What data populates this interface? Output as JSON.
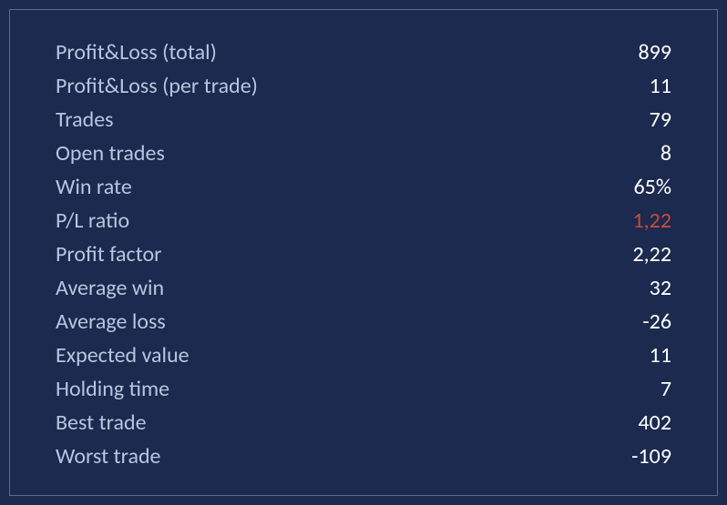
{
  "stats": {
    "type": "table",
    "background_color": "#1b2a4e",
    "border_color": "#5a6b8f",
    "label_color": "#b8c5e0",
    "value_color": "#ffffff",
    "highlight_color": "#c94a3b",
    "font_size": 24,
    "font_weight": 300,
    "rows": [
      {
        "label": "Profit&Loss (total)",
        "value": "899",
        "highlight": false
      },
      {
        "label": "Profit&Loss (per trade)",
        "value": "11",
        "highlight": false
      },
      {
        "label": "Trades",
        "value": "79",
        "highlight": false
      },
      {
        "label": "Open trades",
        "value": "8",
        "highlight": false
      },
      {
        "label": "Win rate",
        "value": "65%",
        "highlight": false
      },
      {
        "label": "P/L ratio",
        "value": "1,22",
        "highlight": true
      },
      {
        "label": "Profit factor",
        "value": "2,22",
        "highlight": false
      },
      {
        "label": "Average win",
        "value": "32",
        "highlight": false
      },
      {
        "label": "Average loss",
        "value": "-26",
        "highlight": false
      },
      {
        "label": "Expected value",
        "value": "11",
        "highlight": false
      },
      {
        "label": "Holding time",
        "value": "7",
        "highlight": false
      },
      {
        "label": "Best trade",
        "value": "402",
        "highlight": false
      },
      {
        "label": "Worst trade",
        "value": "-109",
        "highlight": false
      }
    ]
  }
}
